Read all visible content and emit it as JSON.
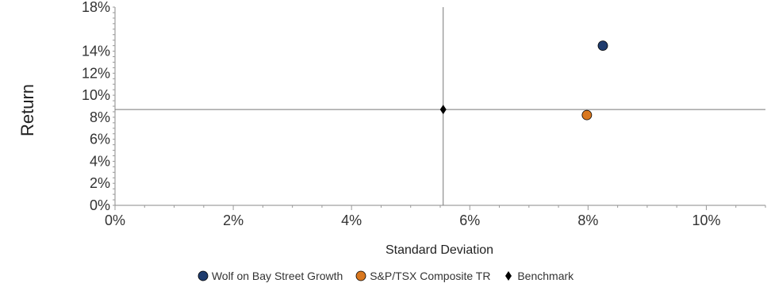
{
  "chart_data": {
    "type": "scatter",
    "xlabel": "Standard Deviation",
    "ylabel": "Return",
    "xlim": [
      0,
      11
    ],
    "ylim": [
      0,
      18
    ],
    "x_ticks": [
      0,
      2,
      4,
      6,
      8,
      10
    ],
    "x_tick_labels": [
      "0%",
      "2%",
      "4%",
      "6%",
      "8%",
      "10%"
    ],
    "y_ticks": [
      0,
      2,
      4,
      6,
      8,
      10,
      12,
      14,
      18
    ],
    "y_tick_labels": [
      "0%",
      "2%",
      "4%",
      "6%",
      "8%",
      "10%",
      "12%",
      "14%",
      "18%"
    ],
    "reference_lines": {
      "x": 5.55,
      "y": 8.7
    },
    "legend_position": "bottom",
    "grid": false,
    "series": [
      {
        "name": "Wolf on Bay Street Growth",
        "marker": "circle",
        "color": "#1f3c6e",
        "points": [
          [
            8.25,
            14.5
          ]
        ]
      },
      {
        "name": "S&P/TSX Composite TR",
        "marker": "circle",
        "color": "#d9771e",
        "points": [
          [
            7.98,
            8.2
          ]
        ]
      },
      {
        "name": "Benchmark",
        "marker": "diamond",
        "color": "#000000",
        "points": [
          [
            5.55,
            8.7
          ]
        ]
      }
    ]
  }
}
